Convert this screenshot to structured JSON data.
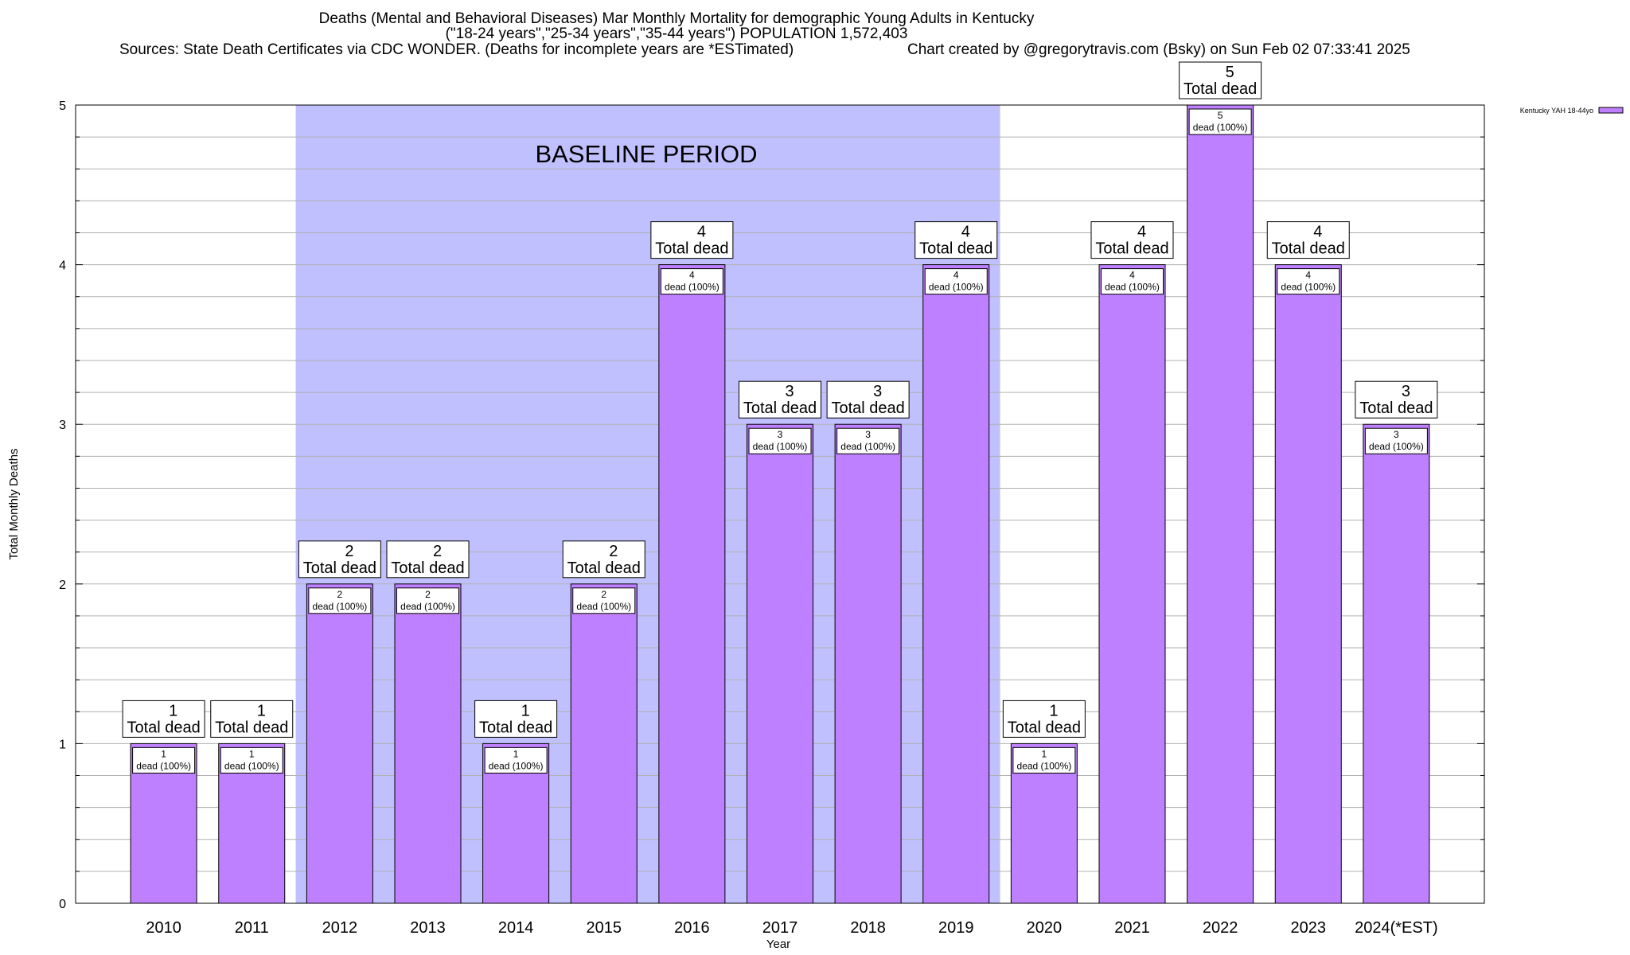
{
  "header": {
    "title_line1": "Deaths (Mental and Behavioral Diseases) Mar Monthly Mortality for demographic Young Adults in Kentucky",
    "title_line2": "(\"18-24 years\",\"25-34 years\",\"35-44 years\") POPULATION 1,572,403",
    "sources": "Sources: State Death Certificates via CDC WONDER. (Deaths for incomplete years are *ESTimated)",
    "credit": "Chart created by @gregorytravis.com (Bsky) on Sun Feb 02 07:33:41 2025"
  },
  "chart_data": {
    "type": "bar",
    "xlabel": "Year",
    "ylabel": "Total Monthly Deaths",
    "ylim": [
      0,
      5
    ],
    "yticks": [
      0,
      1,
      2,
      3,
      4,
      5
    ],
    "grid": true,
    "categories": [
      "2010",
      "2011",
      "2012",
      "2013",
      "2014",
      "2015",
      "2016",
      "2017",
      "2018",
      "2019",
      "2020",
      "2021",
      "2022",
      "2023",
      "2024(*EST)"
    ],
    "series": [
      {
        "name": "Kentucky YAH 18-44yo",
        "color": "#bf80ff",
        "values": [
          1,
          1,
          2,
          2,
          1,
          2,
          4,
          3,
          3,
          4,
          1,
          4,
          5,
          4,
          3
        ]
      }
    ],
    "bar_total_suffix": "Total dead",
    "bar_inner_suffix": "dead (100%)",
    "baseline": {
      "label": "BASELINE PERIOD",
      "start": "2012",
      "end": "2019",
      "color": "#c0c0ff"
    },
    "legend_position": "top-right"
  }
}
